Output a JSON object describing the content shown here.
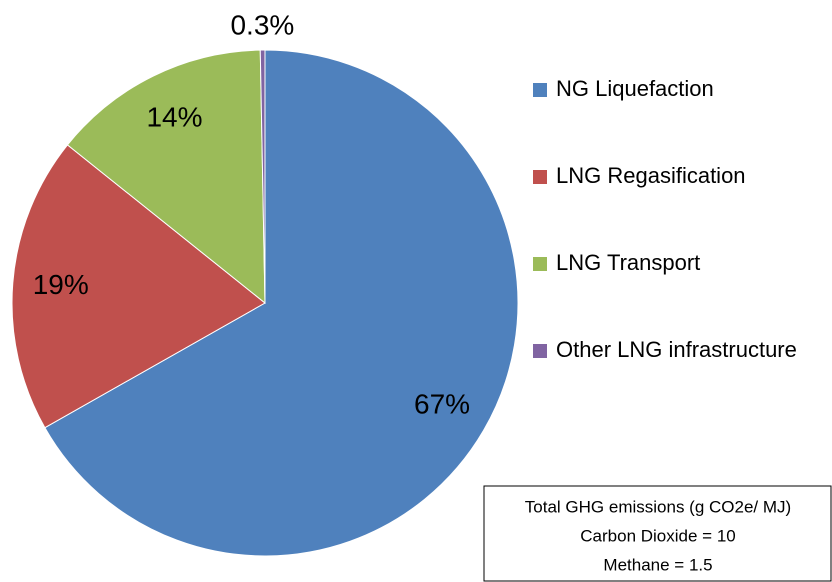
{
  "chart_data": {
    "type": "pie",
    "categories": [
      "NG Liquefaction",
      "LNG Regasification",
      "LNG Transport",
      "Other LNG infrastructure"
    ],
    "values": [
      67,
      19,
      14,
      0.3
    ],
    "value_labels": [
      "67%",
      "19%",
      "14%",
      "0.3%"
    ],
    "colors": [
      "#4f81bd",
      "#c0504d",
      "#9bbb59",
      "#8064a2"
    ],
    "legend": "right",
    "annotations": [
      "Total GHG emissions (g CO2e/ MJ)",
      "Carbon Dioxide = 10",
      "Methane = 1.5"
    ]
  }
}
